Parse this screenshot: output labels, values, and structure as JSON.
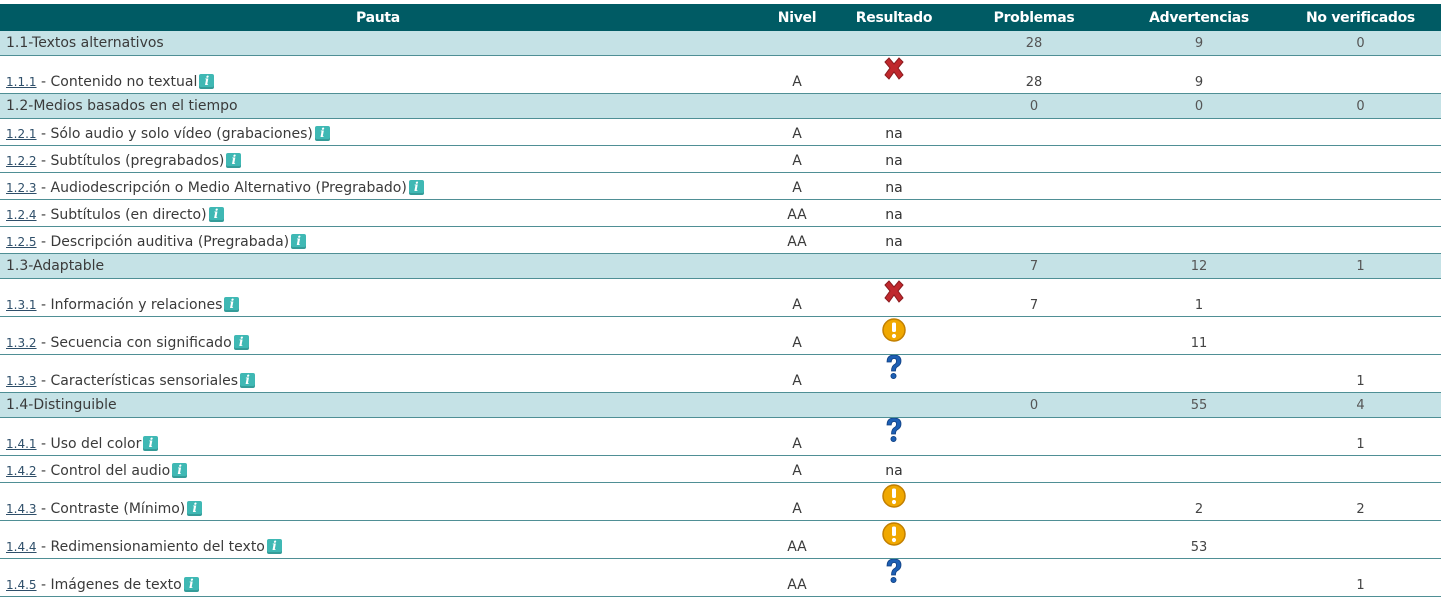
{
  "headers": {
    "pauta": "Pauta",
    "nivel": "Nivel",
    "resultado": "Resultado",
    "problemas": "Problemas",
    "advertencias": "Advertencias",
    "no_verificados": "No verificados"
  },
  "colors": {
    "header_bg": "#005b64",
    "group_bg": "#c5e2e6",
    "fail": "#c0282d",
    "warning": "#f0a800",
    "unverified": "#1d5fb4",
    "info": "#3fb8b4"
  },
  "g1": {
    "title": "1.1-Textos alternativos",
    "problemas": "28",
    "advertencias": "9",
    "no_verificados": "0"
  },
  "r111": {
    "code": "1.1.1",
    "label": " - Contenido no textual",
    "nivel": "A",
    "resultado": "fail-x-icon",
    "problemas": "28",
    "advertencias": "9",
    "no_verificados": ""
  },
  "g2": {
    "title": "1.2-Medios basados en el tiempo",
    "problemas": "0",
    "advertencias": "0",
    "no_verificados": "0"
  },
  "r121": {
    "code": "1.2.1",
    "label": " - Sólo audio y solo vídeo (grabaciones)",
    "nivel": "A",
    "resultado": "na"
  },
  "r122": {
    "code": "1.2.2",
    "label": " - Subtítulos (pregrabados)",
    "nivel": "A",
    "resultado": "na"
  },
  "r123": {
    "code": "1.2.3",
    "label": " - Audiodescripción o Medio Alternativo (Pregrabado)",
    "nivel": "A",
    "resultado": "na"
  },
  "r124": {
    "code": "1.2.4",
    "label": " - Subtítulos (en directo)",
    "nivel": "AA",
    "resultado": "na"
  },
  "r125": {
    "code": "1.2.5",
    "label": " - Descripción auditiva (Pregrabada)",
    "nivel": "AA",
    "resultado": "na"
  },
  "g3": {
    "title": "1.3-Adaptable",
    "problemas": "7",
    "advertencias": "12",
    "no_verificados": "1"
  },
  "r131": {
    "code": "1.3.1",
    "label": " - Información y relaciones",
    "nivel": "A",
    "resultado": "fail-x-icon",
    "problemas": "7",
    "advertencias": "1",
    "no_verificados": ""
  },
  "r132": {
    "code": "1.3.2",
    "label": " - Secuencia con significado",
    "nivel": "A",
    "resultado": "warning-icon",
    "problemas": "",
    "advertencias": "11",
    "no_verificados": ""
  },
  "r133": {
    "code": "1.3.3",
    "label": " - Características sensoriales",
    "nivel": "A",
    "resultado": "question-icon",
    "problemas": "",
    "advertencias": "",
    "no_verificados": "1"
  },
  "g4": {
    "title": "1.4-Distinguible",
    "problemas": "0",
    "advertencias": "55",
    "no_verificados": "4"
  },
  "r141": {
    "code": "1.4.1",
    "label": " - Uso del color",
    "nivel": "A",
    "resultado": "question-icon",
    "problemas": "",
    "advertencias": "",
    "no_verificados": "1"
  },
  "r142": {
    "code": "1.4.2",
    "label": " - Control del audio",
    "nivel": "A",
    "resultado": "na"
  },
  "r143": {
    "code": "1.4.3",
    "label": " - Contraste (Mínimo)",
    "nivel": "A",
    "resultado": "warning-icon",
    "problemas": "",
    "advertencias": "2",
    "no_verificados": "2"
  },
  "r144": {
    "code": "1.4.4",
    "label": " - Redimensionamiento del texto",
    "nivel": "AA",
    "resultado": "warning-icon",
    "problemas": "",
    "advertencias": "53",
    "no_verificados": ""
  },
  "r145": {
    "code": "1.4.5",
    "label": " - Imágenes de texto",
    "nivel": "AA",
    "resultado": "question-icon",
    "problemas": "",
    "advertencias": "",
    "no_verificados": "1"
  }
}
